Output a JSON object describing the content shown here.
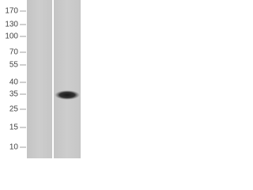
{
  "markers": [
    "170",
    "130",
    "100",
    "70",
    "55",
    "40",
    "35",
    "25",
    "15",
    "10"
  ]
}
